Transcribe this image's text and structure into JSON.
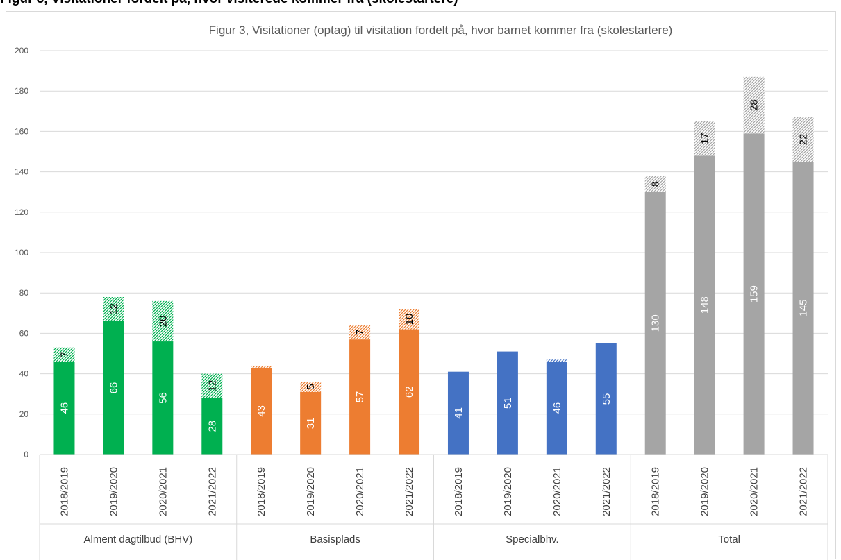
{
  "page": {
    "heading": "Figur 3, Visitationer fordelt på, hvor visiterede kommer fra (skolestartere)"
  },
  "chart_data": {
    "type": "bar",
    "stacked": true,
    "title": "Figur 3, Visitationer (optag) til visitation fordelt på, hvor barnet kommer fra (skolestartere)",
    "xlabel": "",
    "ylabel": "",
    "ylim": [
      0,
      200
    ],
    "yticks": [
      0,
      20,
      40,
      60,
      80,
      100,
      120,
      140,
      160,
      180,
      200
    ],
    "grid": true,
    "legend": "none",
    "groups": [
      {
        "name": "Alment dagtilbud (BHV)",
        "color": "#00b050",
        "categories": [
          "2018/2019",
          "2019/2020",
          "2020/2021",
          "2021/2022"
        ],
        "base": [
          46,
          66,
          56,
          28
        ],
        "hatched": [
          7,
          12,
          20,
          12
        ],
        "hatched_labels": [
          "7",
          "12",
          "20",
          "12"
        ]
      },
      {
        "name": "Basisplads",
        "color": "#ed7d31",
        "categories": [
          "2018/2019",
          "2019/2020",
          "2020/2021",
          "2021/2022"
        ],
        "base": [
          43,
          31,
          57,
          62
        ],
        "hatched": [
          1,
          5,
          7,
          10
        ],
        "hatched_labels": [
          "",
          "5",
          "7",
          "10"
        ]
      },
      {
        "name": "Specialbhv.",
        "color": "#4472c4",
        "categories": [
          "2018/2019",
          "2019/2020",
          "2020/2021",
          "2021/2022"
        ],
        "base": [
          41,
          51,
          46,
          55
        ],
        "hatched": [
          0,
          0,
          1,
          0
        ],
        "hatched_labels": [
          "",
          "",
          "",
          ""
        ]
      },
      {
        "name": "Total",
        "color": "#a5a5a5",
        "categories": [
          "2018/2019",
          "2019/2020",
          "2020/2021",
          "2021/2022"
        ],
        "base": [
          130,
          148,
          159,
          145
        ],
        "hatched": [
          8,
          17,
          28,
          22
        ],
        "hatched_labels": [
          "8",
          "17",
          "28",
          "22"
        ]
      }
    ]
  }
}
